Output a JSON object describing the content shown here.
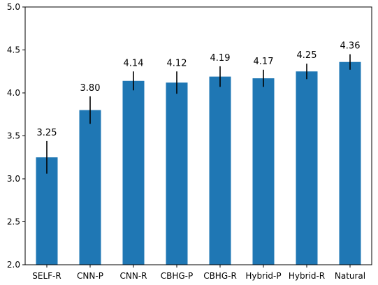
{
  "chart_data": {
    "type": "bar",
    "title": "",
    "xlabel": "",
    "ylabel": "",
    "categories": [
      "SELF-R",
      "CNN-P",
      "CNN-R",
      "CBHG-P",
      "CBHG-R",
      "Hybrid-P",
      "Hybrid-R",
      "Natural"
    ],
    "values": [
      3.25,
      3.8,
      4.14,
      4.12,
      4.19,
      4.17,
      4.25,
      4.36
    ],
    "errors": [
      0.19,
      0.16,
      0.11,
      0.13,
      0.12,
      0.1,
      0.09,
      0.09
    ],
    "labels": [
      "3.25",
      "3.80",
      "4.14",
      "4.12",
      "4.19",
      "4.17",
      "4.25",
      "4.36"
    ],
    "ylim": [
      2.0,
      5.0
    ],
    "yticks": [
      "2.0",
      "2.5",
      "3.0",
      "3.5",
      "4.0",
      "4.5",
      "5.0"
    ],
    "bar_color": "#1f77b4",
    "error_color": "#000000",
    "grid": false,
    "legend": "none"
  }
}
